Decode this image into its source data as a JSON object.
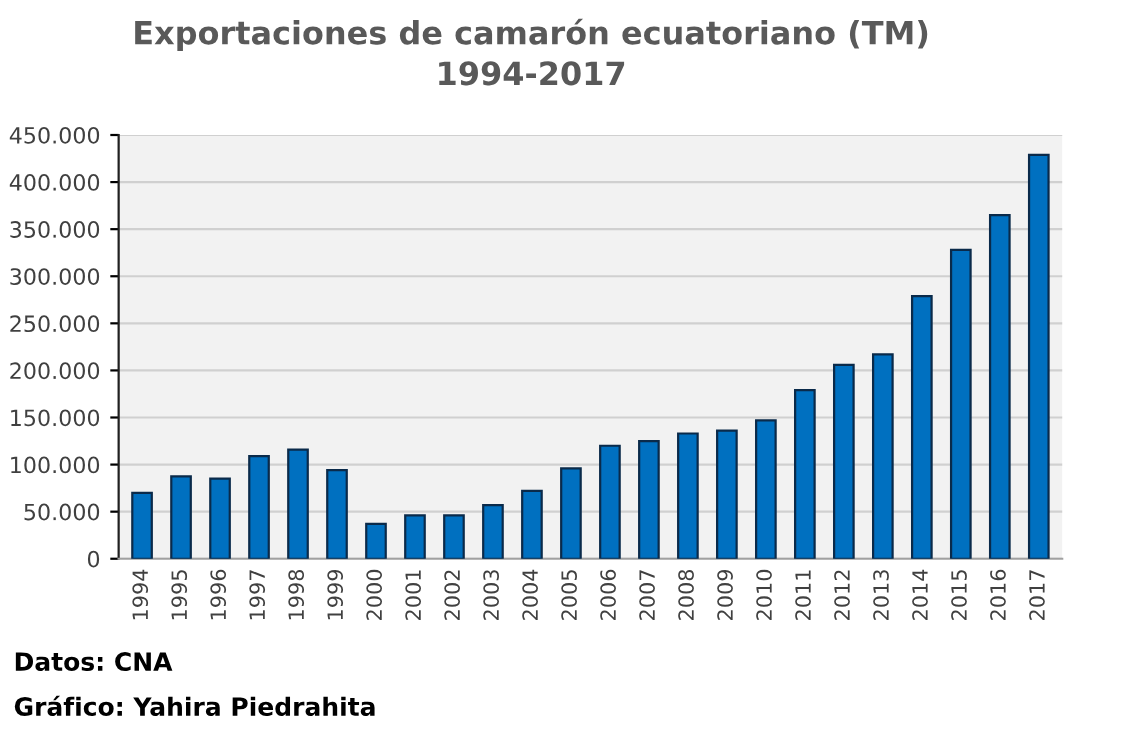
{
  "chart_data": {
    "type": "bar",
    "title": "Exportaciones de camarón ecuatoriano (TM)\n1994-2017",
    "categories": [
      "1994",
      "1995",
      "1996",
      "1997",
      "1998",
      "1999",
      "2000",
      "2001",
      "2002",
      "2003",
      "2004",
      "2005",
      "2006",
      "2007",
      "2008",
      "2009",
      "2010",
      "2011",
      "2012",
      "2013",
      "2014",
      "2015",
      "2016",
      "2017"
    ],
    "values": [
      70000,
      87500,
      85000,
      109000,
      116000,
      94000,
      37000,
      46000,
      46000,
      57000,
      72000,
      96000,
      120000,
      125000,
      133000,
      136000,
      147000,
      179000,
      206000,
      217000,
      279000,
      328000,
      365000,
      429000
    ],
    "color": "#0070c0",
    "ylim": [
      0,
      450000
    ],
    "yticks": [
      0,
      {
        "value": 50000,
        "label": "50.000"
      },
      {
        "value": 100000,
        "label": "100.000"
      },
      {
        "value": 150000,
        "label": "150.000"
      },
      {
        "value": 200000,
        "label": "200.000"
      },
      {
        "value": 250000,
        "label": "250.000"
      },
      {
        "value": 300000,
        "label": "300.000"
      },
      {
        "value": 350000,
        "label": "350.000"
      },
      {
        "value": 400000,
        "label": "400.000"
      },
      {
        "value": 450000,
        "label": "450.000"
      }
    ],
    "grid": "y",
    "legend": false,
    "annotations": [
      "Datos: CNA",
      "Gráfico: Yahira Piedrahita"
    ]
  }
}
